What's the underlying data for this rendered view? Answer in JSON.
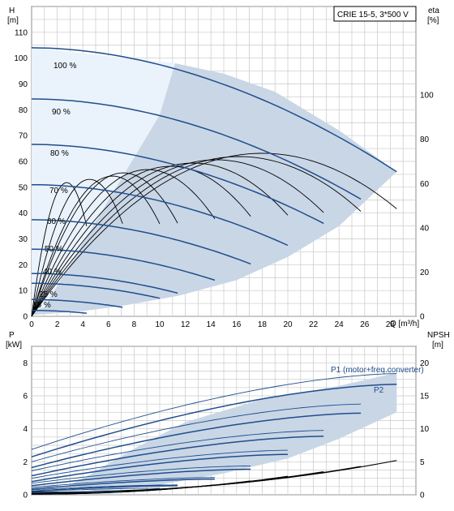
{
  "chart_data": [
    {
      "type": "line",
      "title": "CRIE 15-5, 3*500 V",
      "ylabel_left": "H",
      "ylabel_left_unit": "[m]",
      "ylabel_right": "eta",
      "ylabel_right_unit": "[%]",
      "xlabel": "Q [m³/h]",
      "xlim": [
        0,
        30
      ],
      "ylim": [
        0,
        120
      ],
      "y2lim": [
        0,
        140
      ],
      "xticks": [
        0,
        2,
        4,
        6,
        8,
        10,
        12,
        14,
        16,
        18,
        20,
        22,
        24,
        26,
        28
      ],
      "yticks": [
        0,
        10,
        20,
        30,
        40,
        50,
        60,
        70,
        80,
        90,
        100,
        110
      ],
      "y2ticks": [
        0,
        20,
        40,
        60,
        80,
        100
      ],
      "grid": true,
      "operating_area_hull": [
        [
          0,
          0.5
        ],
        [
          1.5,
          1.0
        ],
        [
          4.2,
          2.2
        ],
        [
          7.0,
          4.0
        ],
        [
          11.5,
          8.0
        ],
        [
          16.0,
          14.0
        ],
        [
          20.0,
          23.0
        ],
        [
          24.0,
          35.0
        ],
        [
          28.5,
          56.0
        ],
        [
          24.0,
          72.0
        ],
        [
          19.0,
          87.0
        ],
        [
          15.0,
          94.0
        ],
        [
          11.2,
          98.0
        ],
        [
          10.0,
          78.0
        ],
        [
          4.8,
          35.0
        ],
        [
          1.0,
          3.5
        ],
        [
          0,
          2.0
        ]
      ],
      "low_speed_area_hull": [
        [
          0,
          104
        ],
        [
          11.2,
          98.0
        ],
        [
          10.0,
          78.0
        ],
        [
          4.8,
          35.0
        ],
        [
          1.0,
          3.5
        ],
        [
          0,
          2.0
        ]
      ],
      "head_curves": [
        {
          "speed_label": "100 %",
          "H0": 104,
          "Qmax": 28.5
        },
        {
          "speed_label": "90 %",
          "H0": 84.2,
          "Qmax": 25.7
        },
        {
          "speed_label": "80 %",
          "H0": 66.6,
          "Qmax": 22.8
        },
        {
          "speed_label": "70 %",
          "H0": 51.0,
          "Qmax": 20.0
        },
        {
          "speed_label": "60 %",
          "H0": 37.4,
          "Qmax": 17.1
        },
        {
          "speed_label": "50 %",
          "H0": 26.0,
          "Qmax": 14.3
        },
        {
          "speed_label": "40 %",
          "H0": 16.6,
          "Qmax": 11.4
        },
        {
          "speed_label": "",
          "H0": 12.8,
          "Qmax": 10.0
        },
        {
          "speed_label": "25 %",
          "H0": 6.5,
          "Qmax": 7.1
        },
        {
          "speed_label": "15 %",
          "H0": 2.3,
          "Qmax": 4.3
        }
      ],
      "efficiency_curves_left_axis_eta_percent": {
        "peak_eta": 70,
        "peak_flows": [
          17.1,
          15.4,
          13.7,
          12.0,
          10.3,
          8.6,
          6.8,
          6.0,
          4.3,
          2.6
        ]
      },
      "operating_points": [
        {
          "Q": 28.5,
          "H": 56
        },
        {
          "Q": 25.7,
          "H": 45.4
        },
        {
          "Q": 22.8,
          "H": 36.0
        },
        {
          "Q": 20.0,
          "H": 27.5
        },
        {
          "Q": 17.1,
          "H": 20.3
        },
        {
          "Q": 14.3,
          "H": 14.0
        },
        {
          "Q": 11.4,
          "H": 9.0
        },
        {
          "Q": 10.0,
          "H": 7.0
        },
        {
          "Q": 7.1,
          "H": 3.5
        },
        {
          "Q": 4.3,
          "H": 1.2
        }
      ],
      "tick_labels": {
        "speed_labels": [
          "100 %",
          "90 %",
          "80 %",
          "70 %",
          "60 %",
          "50 %",
          "40 %",
          "25 %",
          "15 %"
        ]
      }
    },
    {
      "type": "line",
      "ylabel_left": "P",
      "ylabel_left_unit": "[kW]",
      "ylabel_right": "NPSH",
      "ylabel_right_unit": "[m]",
      "xlim": [
        0,
        30
      ],
      "ylim": [
        0,
        9
      ],
      "y2lim": [
        0,
        22.5
      ],
      "yticks": [
        0,
        2,
        4,
        6,
        8
      ],
      "y2ticks": [
        0,
        5,
        10,
        15,
        20
      ],
      "grid": true,
      "series_labels": [
        "P1 (motor+freq.converter)",
        "P2"
      ],
      "power_area_hull": [
        [
          5,
          0.2
        ],
        [
          10,
          0.6
        ],
        [
          15,
          1.3
        ],
        [
          20,
          2.2
        ],
        [
          24,
          3.4
        ],
        [
          28.5,
          5.0
        ],
        [
          28.5,
          7.4
        ],
        [
          24,
          6.6
        ],
        [
          18,
          5.8
        ],
        [
          12,
          4.4
        ],
        [
          8,
          2.8
        ],
        [
          4.5,
          1.2
        ],
        [
          3,
          0.6
        ]
      ],
      "p1_curves": [
        {
          "P0": 2.75,
          "Pend": 7.35,
          "Qmax": 28.5
        },
        {
          "P0": 2.0,
          "Pend": 5.5,
          "Qmax": 25.7
        },
        {
          "P0": 1.45,
          "Pend": 3.9,
          "Qmax": 22.8
        },
        {
          "P0": 1.0,
          "Pend": 2.7,
          "Qmax": 20.0
        },
        {
          "P0": 0.7,
          "Pend": 1.75,
          "Qmax": 17.1
        },
        {
          "P0": 0.45,
          "Pend": 1.05,
          "Qmax": 14.3
        },
        {
          "P0": 0.3,
          "Pend": 0.6,
          "Qmax": 11.4
        },
        {
          "P0": 0.2,
          "Pend": 0.4,
          "Qmax": 10.0
        },
        {
          "P0": 0.12,
          "Pend": 0.18,
          "Qmax": 7.1
        }
      ],
      "p2_curves": [
        {
          "P0": 2.3,
          "Pend": 6.7,
          "Qmax": 28.5
        },
        {
          "P0": 1.65,
          "Pend": 4.95,
          "Qmax": 25.7
        },
        {
          "P0": 1.15,
          "Pend": 3.55,
          "Qmax": 22.8
        },
        {
          "P0": 0.8,
          "Pend": 2.45,
          "Qmax": 20.0
        },
        {
          "P0": 0.55,
          "Pend": 1.55,
          "Qmax": 17.1
        },
        {
          "P0": 0.35,
          "Pend": 0.95,
          "Qmax": 14.3
        },
        {
          "P0": 0.22,
          "Pend": 0.55,
          "Qmax": 11.4
        }
      ],
      "npsh_curves_m": [
        {
          "N0": 0.4,
          "Nend": 5.2,
          "Qmax": 28.5
        },
        {
          "N0": 0.35,
          "Nend": 4.3,
          "Qmax": 25.7
        },
        {
          "N0": 0.3,
          "Nend": 3.5,
          "Qmax": 22.8
        },
        {
          "N0": 0.25,
          "Nend": 2.8,
          "Qmax": 20.0
        },
        {
          "N0": 0.2,
          "Nend": 2.1,
          "Qmax": 17.1
        },
        {
          "N0": 0.15,
          "Nend": 1.5,
          "Qmax": 14.3
        },
        {
          "N0": 0.1,
          "Nend": 1.0,
          "Qmax": 11.4
        },
        {
          "N0": 0.1,
          "Nend": 0.6,
          "Qmax": 7.1
        }
      ]
    }
  ],
  "colors": {
    "curve_blue": "#1f4e8c",
    "area_fill": "#c9d6e6",
    "area_light": "#eaf2fb",
    "eta_black": "#000000",
    "grid": "#c8c8c8"
  }
}
